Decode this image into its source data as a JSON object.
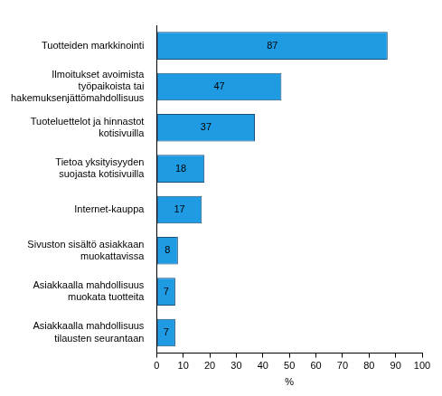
{
  "chart_data": {
    "type": "bar",
    "orientation": "horizontal",
    "categories": [
      "Tuotteiden markkinointi",
      "Ilmoitukset avoimista työpaikoista tai hakemuksenjättömahdollisuus",
      "Tuoteluettelot ja hinnastot kotisivuilla",
      "Tietoa yksityisyyden suojasta kotisivuilla",
      "Internet-kauppa",
      "Sivuston sisältö asiakkaan muokattavissa",
      "Asiakkaalla mahdollisuus muokata tuotteita",
      "Asiakkaalla mahdollisuus tilausten seurantaan"
    ],
    "values": [
      87,
      47,
      37,
      18,
      17,
      8,
      7,
      7
    ],
    "color": "#1e9be3",
    "x_label": "%",
    "xlim": [
      0,
      100
    ],
    "xticks": [
      0,
      10,
      20,
      30,
      40,
      50,
      60,
      70,
      80,
      90,
      100
    ],
    "grid": false,
    "data_labels": true
  }
}
